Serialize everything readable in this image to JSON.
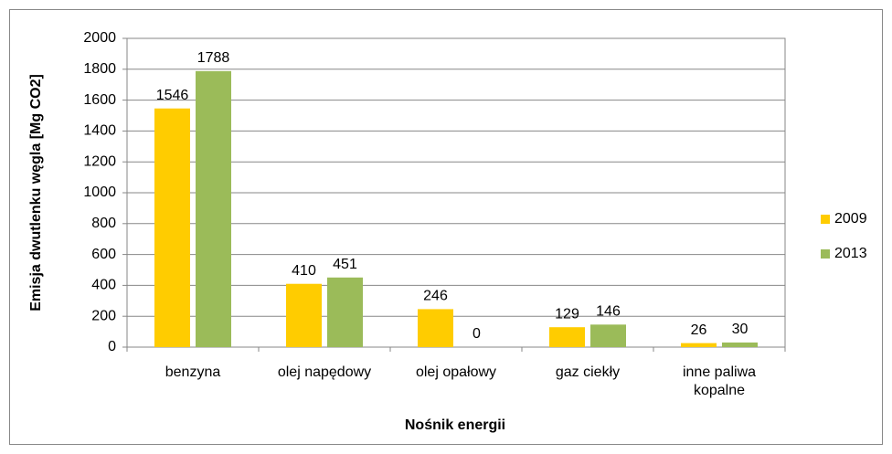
{
  "chart_data": {
    "type": "bar",
    "y_label": "Emisja dwutlenku węgla [Mg CO2]",
    "x_label": "Nośnik energii",
    "categories": [
      "benzyna",
      "olej napędowy",
      "olej opałowy",
      "gaz ciekły",
      "inne paliwa kopalne"
    ],
    "series": [
      {
        "name": "2009",
        "color": "#ffcc00",
        "values": [
          1546,
          410,
          246,
          129,
          26
        ]
      },
      {
        "name": "2013",
        "color": "#9bbb59",
        "values": [
          1788,
          451,
          0,
          146,
          30
        ]
      }
    ],
    "ylim": [
      0,
      2000
    ],
    "yticks": [
      0,
      200,
      400,
      600,
      800,
      1000,
      1200,
      1400,
      1600,
      1800,
      2000
    ],
    "grid": true,
    "legend": "right"
  }
}
